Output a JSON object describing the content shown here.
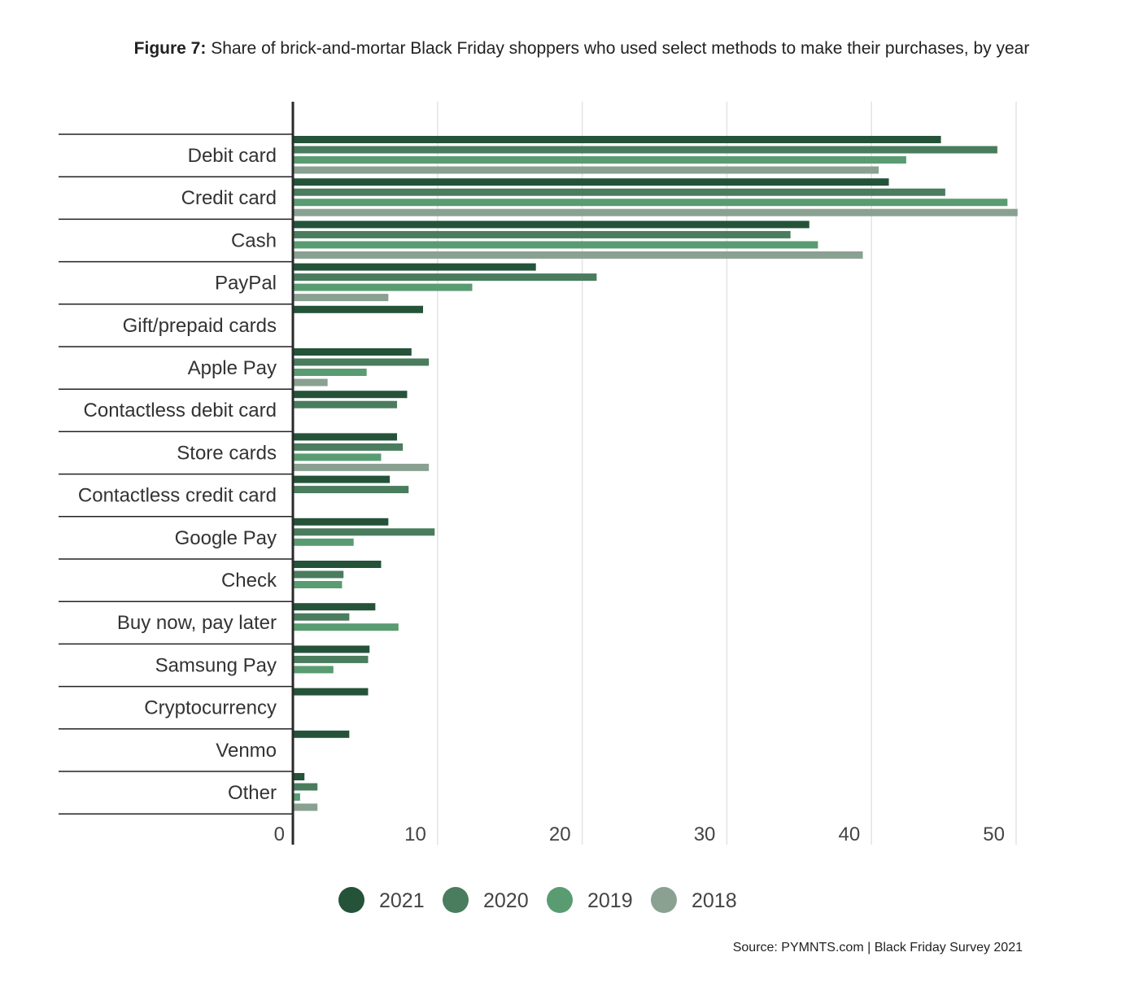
{
  "title_prefix": "Figure 7:",
  "title_text": " Share of brick-and-mortar Black Friday shoppers who used select methods to make their purchases, by year",
  "source": "Source: PYMNTS.com | Black Friday Survey 2021",
  "chart_data": {
    "type": "bar",
    "orientation": "horizontal",
    "title": "Figure 7: Share of brick-and-mortar Black Friday shoppers who used select methods to make their purchases, by year",
    "xlabel": "",
    "ylabel": "",
    "xlim": [
      0,
      50
    ],
    "xticks": [
      0,
      10,
      20,
      30,
      40,
      50
    ],
    "grid": true,
    "legend_position": "bottom",
    "categories": [
      "Debit card",
      "Credit card",
      "Cash",
      "PayPal",
      "Gift/prepaid cards",
      "Apple Pay",
      "Contactless debit card",
      "Store cards",
      "Contactless credit card",
      "Google Pay",
      "Check",
      "Buy now, pay later",
      "Samsung Pay",
      "Cryptocurrency",
      "Venmo",
      "Other"
    ],
    "series": [
      {
        "name": "2021",
        "color": "#24533a",
        "values": [
          44.8,
          41.2,
          35.7,
          16.8,
          9.0,
          8.2,
          7.9,
          7.2,
          6.7,
          6.6,
          6.1,
          5.7,
          5.3,
          5.2,
          3.9,
          0.8
        ]
      },
      {
        "name": "2020",
        "color": "#4a7c5e",
        "values": [
          48.7,
          45.1,
          34.4,
          21.0,
          null,
          9.4,
          7.2,
          7.6,
          8.0,
          9.8,
          3.5,
          3.9,
          5.2,
          null,
          null,
          1.7
        ]
      },
      {
        "name": "2019",
        "color": "#5a9c72",
        "values": [
          42.4,
          49.4,
          36.3,
          12.4,
          null,
          5.1,
          null,
          6.1,
          null,
          4.2,
          3.4,
          7.3,
          2.8,
          null,
          null,
          0.5
        ]
      },
      {
        "name": "2018",
        "color": "#8aa192",
        "values": [
          40.5,
          50.1,
          39.4,
          6.6,
          null,
          2.4,
          null,
          9.4,
          null,
          null,
          null,
          null,
          null,
          null,
          null,
          1.7
        ]
      }
    ]
  }
}
